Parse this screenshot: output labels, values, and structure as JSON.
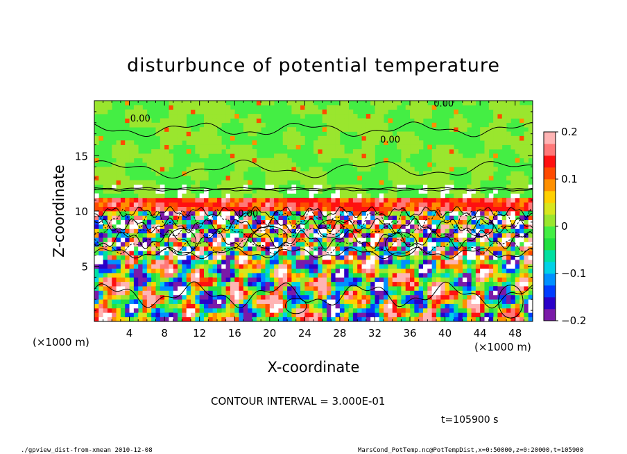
{
  "chart_data": {
    "type": "heatmap",
    "title": "disturbunce of potential temperature",
    "xlabel": "X-coordinate",
    "ylabel": "Z-coordinate",
    "x_unit": "(×1000 m)",
    "y_unit": "(×1000 m)",
    "xlim": [
      0,
      50
    ],
    "ylim": [
      0,
      20
    ],
    "x_ticks": [
      4,
      8,
      12,
      16,
      20,
      24,
      28,
      32,
      36,
      40,
      44,
      48
    ],
    "y_ticks": [
      5,
      10,
      15
    ],
    "colorbar": {
      "min": -0.2,
      "max": 0.2,
      "tick_values": [
        0.2,
        0.1,
        0,
        -0.1,
        -0.2
      ],
      "tick_labels": [
        "0.2",
        "0.1",
        "0",
        "−0.1",
        "−0.2"
      ],
      "colors": [
        "#7a1aa8",
        "#2a00c8",
        "#003cff",
        "#0090ff",
        "#00d2e6",
        "#00e0a0",
        "#20e040",
        "#44ee44",
        "#9ae62e",
        "#d8e61e",
        "#ffd000",
        "#ff9000",
        "#ff4a00",
        "#ff1010",
        "#ff7878",
        "#ffb4b4"
      ]
    },
    "contour_label": "0.00",
    "contour_interval_text": "CONTOUR INTERVAL = 3.000E-01",
    "time_text": "t=105900  s"
  },
  "footer": {
    "left": "./gpview_dist-from-xmean   2010-12-08",
    "right": "MarsCond_PotTemp.nc@PotTempDist,x=0:50000,z=0:20000,t=105900"
  }
}
